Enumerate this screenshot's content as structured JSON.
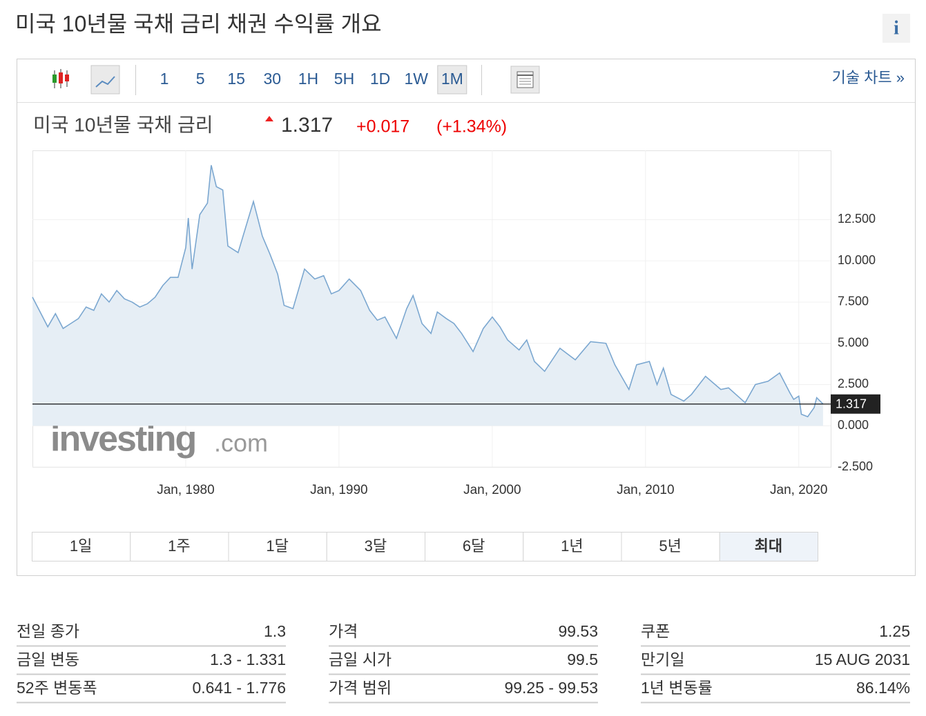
{
  "header": {
    "title": "미국 10년물 국채 금리  채권 수익률 개요",
    "info_icon": "i"
  },
  "toolbar": {
    "intervals": [
      {
        "label": "1"
      },
      {
        "label": "5"
      },
      {
        "label": "15"
      },
      {
        "label": "30"
      },
      {
        "label": "1H"
      },
      {
        "label": "5H"
      },
      {
        "label": "1D"
      },
      {
        "label": "1W"
      },
      {
        "label": "1M",
        "selected": true
      }
    ],
    "technical_chart": "기술 차트 »"
  },
  "quote": {
    "name": "미국 10년물 국채 금리",
    "price": "1.317",
    "change": "+0.017",
    "change_pct": "(+1.34%)"
  },
  "chart_data": {
    "type": "area",
    "watermark": [
      "investing",
      ".com"
    ],
    "color": "#7ba7d0",
    "fill": "#e6eef5",
    "current_line": 1.317,
    "x": [
      "1970-01",
      "1970-07",
      "1971-01",
      "1971-07",
      "1972-01",
      "1972-07",
      "1973-01",
      "1973-07",
      "1974-01",
      "1974-07",
      "1975-01",
      "1975-07",
      "1976-01",
      "1976-07",
      "1977-01",
      "1977-07",
      "1978-01",
      "1978-07",
      "1979-01",
      "1979-07",
      "1980-01",
      "1980-03",
      "1980-06",
      "1980-12",
      "1981-06",
      "1981-09",
      "1982-01",
      "1982-06",
      "1982-10",
      "1983-06",
      "1984-06",
      "1985-01",
      "1985-07",
      "1986-01",
      "1986-06",
      "1987-01",
      "1987-10",
      "1988-06",
      "1989-01",
      "1989-07",
      "1990-01",
      "1990-09",
      "1991-06",
      "1992-01",
      "1992-07",
      "1993-01",
      "1993-10",
      "1994-06",
      "1994-11",
      "1995-06",
      "1996-01",
      "1996-06",
      "1997-01",
      "1997-07",
      "1998-01",
      "1998-10",
      "1999-06",
      "2000-01",
      "2000-07",
      "2001-01",
      "2001-10",
      "2002-04",
      "2002-10",
      "2003-06",
      "2004-06",
      "2005-06",
      "2006-06",
      "2007-06",
      "2008-01",
      "2008-12",
      "2009-06",
      "2010-04",
      "2010-10",
      "2011-03",
      "2011-09",
      "2012-07",
      "2013-01",
      "2013-12",
      "2014-12",
      "2015-06",
      "2016-07",
      "2017-03",
      "2018-01",
      "2018-10",
      "2019-06",
      "2019-09",
      "2020-01",
      "2020-03",
      "2020-08",
      "2021-01",
      "2021-03",
      "2021-08"
    ],
    "values": [
      7.8,
      6.9,
      6.0,
      6.8,
      5.9,
      6.2,
      6.5,
      7.2,
      7.0,
      8.0,
      7.5,
      8.2,
      7.7,
      7.5,
      7.2,
      7.4,
      7.8,
      8.5,
      9.0,
      9.0,
      10.8,
      12.6,
      9.5,
      12.8,
      13.5,
      15.8,
      14.5,
      14.3,
      10.9,
      10.5,
      13.6,
      11.5,
      10.4,
      9.2,
      7.3,
      7.1,
      9.5,
      8.9,
      9.1,
      8.0,
      8.2,
      8.9,
      8.2,
      7.0,
      6.4,
      6.6,
      5.3,
      7.1,
      7.9,
      6.2,
      5.6,
      6.9,
      6.5,
      6.2,
      5.6,
      4.5,
      5.9,
      6.6,
      6.0,
      5.2,
      4.6,
      5.2,
      3.9,
      3.3,
      4.7,
      4.0,
      5.1,
      5.0,
      3.7,
      2.2,
      3.7,
      3.9,
      2.5,
      3.5,
      1.9,
      1.5,
      1.9,
      3.0,
      2.2,
      2.3,
      1.4,
      2.5,
      2.7,
      3.2,
      2.0,
      1.6,
      1.8,
      0.7,
      0.55,
      1.1,
      1.7,
      1.317
    ],
    "xlim": [
      "1970-01",
      "2022-02"
    ],
    "ylim": [
      -2.5,
      16.7
    ],
    "xticks": [
      {
        "value": "1980-01",
        "label": "Jan, 1980"
      },
      {
        "value": "1990-01",
        "label": "Jan, 1990"
      },
      {
        "value": "2000-01",
        "label": "Jan, 2000"
      },
      {
        "value": "2010-01",
        "label": "Jan, 2010"
      },
      {
        "value": "2020-01",
        "label": "Jan, 2020"
      }
    ],
    "yticks": [
      {
        "value": -2.5,
        "label": "-2.500"
      },
      {
        "value": 0,
        "label": "0.000"
      },
      {
        "value": 2.5,
        "label": "2.500"
      },
      {
        "value": 5,
        "label": "5.000"
      },
      {
        "value": 7.5,
        "label": "7.500"
      },
      {
        "value": 10,
        "label": "10.000"
      },
      {
        "value": 12.5,
        "label": "12.500"
      }
    ],
    "grid": true
  },
  "ranges": [
    {
      "label": "1일"
    },
    {
      "label": "1주"
    },
    {
      "label": "1달"
    },
    {
      "label": "3달"
    },
    {
      "label": "6달"
    },
    {
      "label": "1년"
    },
    {
      "label": "5년"
    },
    {
      "label": "최대",
      "selected": true
    }
  ],
  "stats": [
    [
      {
        "label": "전일 종가",
        "value": "1.3"
      },
      {
        "label": "금일 변동",
        "value": "1.3 - 1.331"
      },
      {
        "label": "52주 변동폭",
        "value": "0.641 - 1.776"
      }
    ],
    [
      {
        "label": "가격",
        "value": "99.53"
      },
      {
        "label": "금일 시가",
        "value": "99.5"
      },
      {
        "label": "가격 범위",
        "value": "99.25 - 99.53"
      }
    ],
    [
      {
        "label": "쿠폰",
        "value": "1.25"
      },
      {
        "label": "만기일",
        "value": "15 AUG 2031"
      },
      {
        "label": "1년 변동률",
        "value": "86.14%"
      }
    ]
  ]
}
